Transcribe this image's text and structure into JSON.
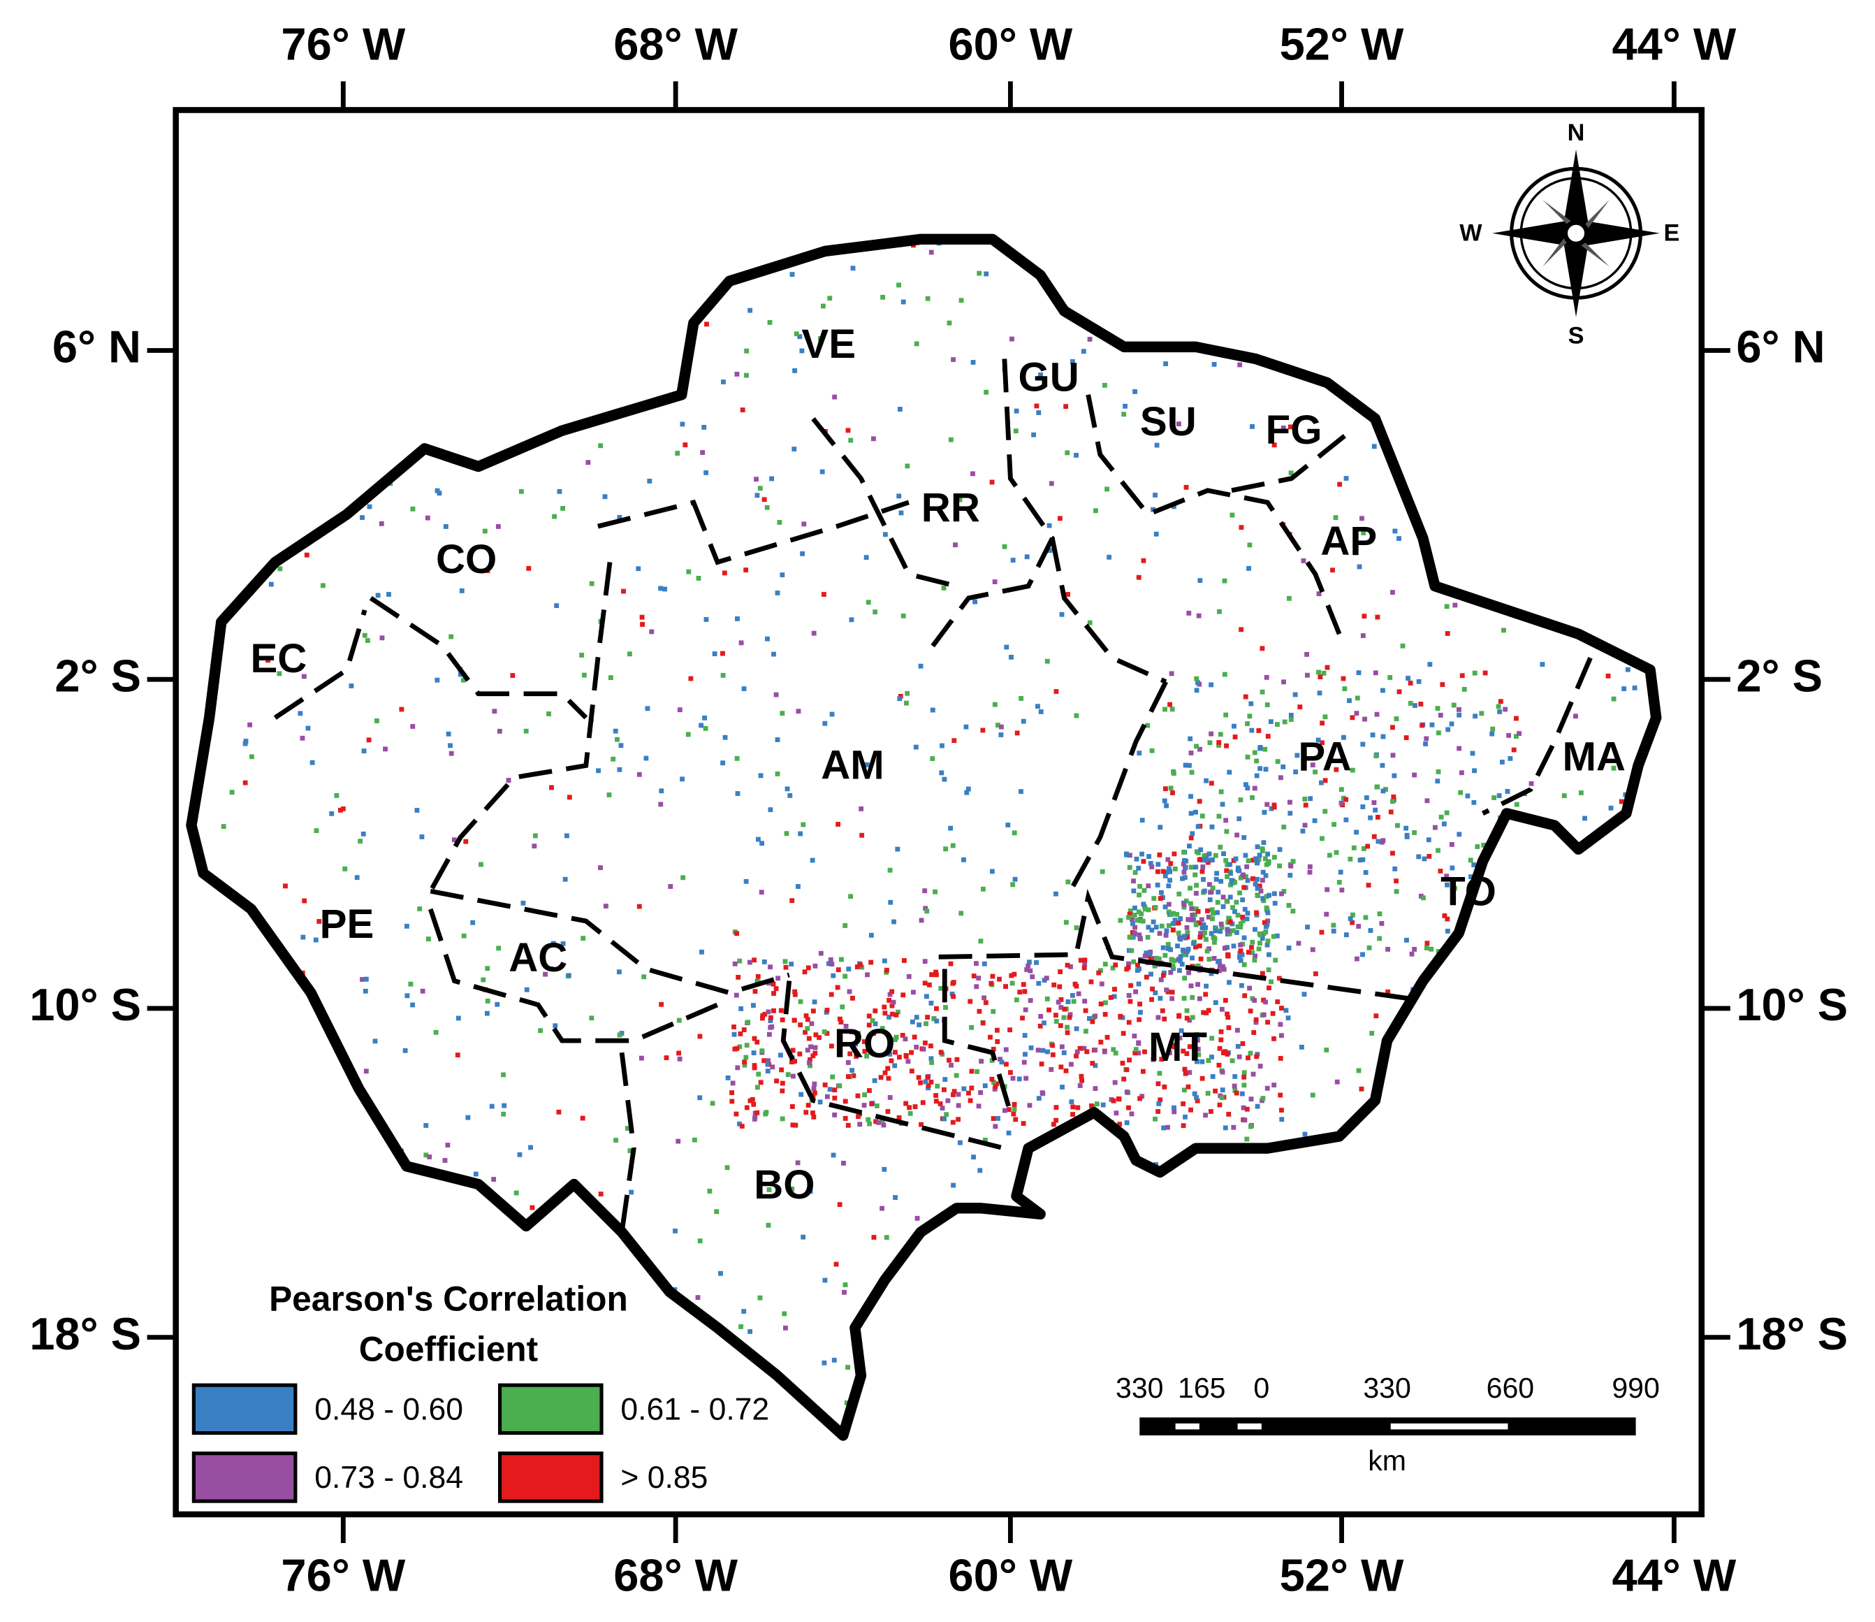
{
  "map": {
    "longitude_labels": [
      "76° W",
      "68° W",
      "60° W",
      "52° W",
      "44° W"
    ],
    "latitude_labels": [
      "6° N",
      "2° S",
      "10° S",
      "18° S"
    ],
    "regions": [
      "VE",
      "GU",
      "SU",
      "FG",
      "RR",
      "AP",
      "CO",
      "EC",
      "AM",
      "PA",
      "MA",
      "TO",
      "PE",
      "AC",
      "RO",
      "MT",
      "BO"
    ],
    "legend": {
      "title": [
        "Pearson's Correlation",
        "Coefficient"
      ],
      "items": [
        {
          "label": "0.48 - 0.60",
          "color": "#3a7fc4"
        },
        {
          "label": "0.61 - 0.72",
          "color": "#4bae4f"
        },
        {
          "label": "0.73 - 0.84",
          "color": "#984ea3"
        },
        {
          "label": "> 0.85",
          "color": "#e41a1c"
        }
      ]
    },
    "scale_bar": {
      "labels": [
        "330",
        "165",
        "0",
        "330",
        "660",
        "990"
      ],
      "unit": "km"
    },
    "compass": [
      "N",
      "E",
      "S",
      "W"
    ]
  }
}
